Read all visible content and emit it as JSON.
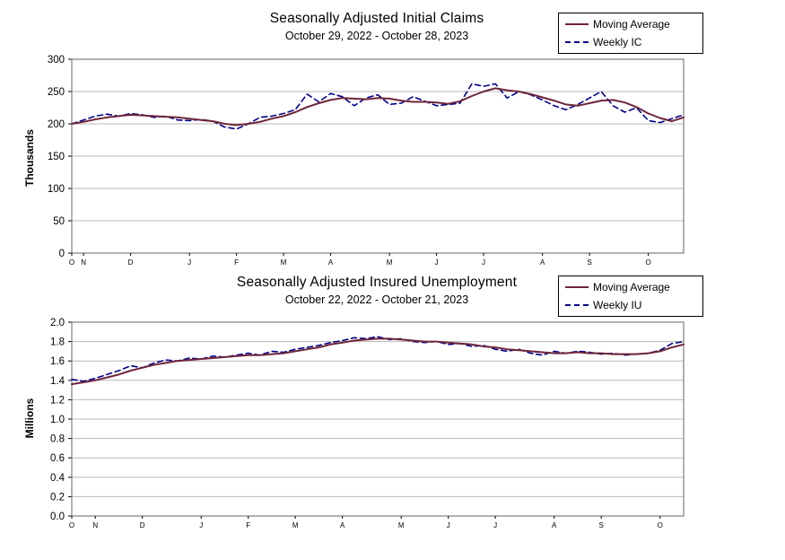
{
  "chart_data": [
    {
      "type": "line",
      "title": "Seasonally Adjusted Initial Claims",
      "subtitle": "October 29, 2022 - October 28, 2023",
      "ylabel": "Thousands",
      "ylim": [
        0,
        300
      ],
      "ytick_step": 50,
      "y_decimals": 0,
      "grid": true,
      "grid_color": "#b8b8b8",
      "axis_color": "#666666",
      "legend_position": "top-right",
      "x_tick_labels": [
        "O",
        "N",
        "D",
        "J",
        "F",
        "M",
        "A",
        "M",
        "J",
        "J",
        "A",
        "S",
        "O"
      ],
      "x_tick_positions": [
        0,
        1,
        5,
        10,
        14,
        18,
        22,
        27,
        31,
        35,
        40,
        44,
        49
      ],
      "series": [
        {
          "name": "Moving Average",
          "color": "#6e2639",
          "dash": null,
          "width": 2,
          "values": [
            200,
            203,
            207,
            210,
            212,
            214,
            213,
            212,
            211,
            210,
            208,
            206,
            204,
            200,
            198,
            200,
            203,
            208,
            212,
            218,
            226,
            232,
            237,
            240,
            239,
            238,
            240,
            239,
            236,
            234,
            234,
            233,
            231,
            235,
            243,
            250,
            255,
            252,
            250,
            246,
            241,
            236,
            230,
            228,
            232,
            236,
            237,
            233,
            226,
            216,
            209,
            204,
            210
          ]
        },
        {
          "name": "Weekly IC",
          "color": "#00008b",
          "dash": "6 4",
          "width": 1.6,
          "values": [
            200,
            206,
            212,
            215,
            212,
            216,
            214,
            210,
            212,
            206,
            205,
            207,
            204,
            195,
            192,
            200,
            210,
            212,
            216,
            222,
            246,
            234,
            247,
            242,
            228,
            240,
            245,
            230,
            232,
            242,
            235,
            228,
            230,
            232,
            262,
            258,
            262,
            240,
            250,
            245,
            237,
            228,
            222,
            230,
            240,
            250,
            228,
            218,
            225,
            205,
            202,
            208,
            214
          ]
        }
      ]
    },
    {
      "type": "line",
      "title": "Seasonally Adjusted Insured Unemployment",
      "subtitle": "October 22, 2022 - October 21, 2023",
      "ylabel": "Millions",
      "ylim": [
        0,
        2.0
      ],
      "ytick_step": 0.2,
      "y_decimals": 1,
      "grid": true,
      "grid_color": "#b8b8b8",
      "axis_color": "#666666",
      "legend_position": "top-right",
      "x_tick_labels": [
        "O",
        "N",
        "D",
        "J",
        "F",
        "M",
        "A",
        "M",
        "J",
        "J",
        "A",
        "S",
        "O"
      ],
      "x_tick_positions": [
        0,
        2,
        6,
        11,
        15,
        19,
        23,
        28,
        32,
        36,
        41,
        45,
        50
      ],
      "series": [
        {
          "name": "Moving Average",
          "color": "#6e2639",
          "dash": null,
          "width": 2,
          "values": [
            1.36,
            1.38,
            1.4,
            1.43,
            1.46,
            1.5,
            1.53,
            1.56,
            1.58,
            1.6,
            1.61,
            1.62,
            1.63,
            1.64,
            1.65,
            1.66,
            1.66,
            1.67,
            1.68,
            1.7,
            1.72,
            1.74,
            1.77,
            1.79,
            1.81,
            1.82,
            1.83,
            1.83,
            1.82,
            1.81,
            1.8,
            1.8,
            1.79,
            1.78,
            1.77,
            1.75,
            1.74,
            1.72,
            1.71,
            1.7,
            1.69,
            1.68,
            1.68,
            1.69,
            1.68,
            1.68,
            1.67,
            1.67,
            1.67,
            1.68,
            1.7,
            1.74,
            1.77
          ]
        },
        {
          "name": "Weekly IU",
          "color": "#00008b",
          "dash": "6 4",
          "width": 1.6,
          "values": [
            1.41,
            1.39,
            1.42,
            1.46,
            1.5,
            1.55,
            1.53,
            1.58,
            1.61,
            1.6,
            1.63,
            1.62,
            1.65,
            1.64,
            1.66,
            1.68,
            1.66,
            1.7,
            1.69,
            1.72,
            1.74,
            1.76,
            1.79,
            1.81,
            1.84,
            1.83,
            1.85,
            1.82,
            1.83,
            1.8,
            1.79,
            1.8,
            1.77,
            1.78,
            1.75,
            1.76,
            1.72,
            1.7,
            1.72,
            1.68,
            1.66,
            1.7,
            1.68,
            1.7,
            1.69,
            1.67,
            1.68,
            1.66,
            1.67,
            1.68,
            1.71,
            1.78,
            1.8
          ]
        }
      ]
    }
  ]
}
